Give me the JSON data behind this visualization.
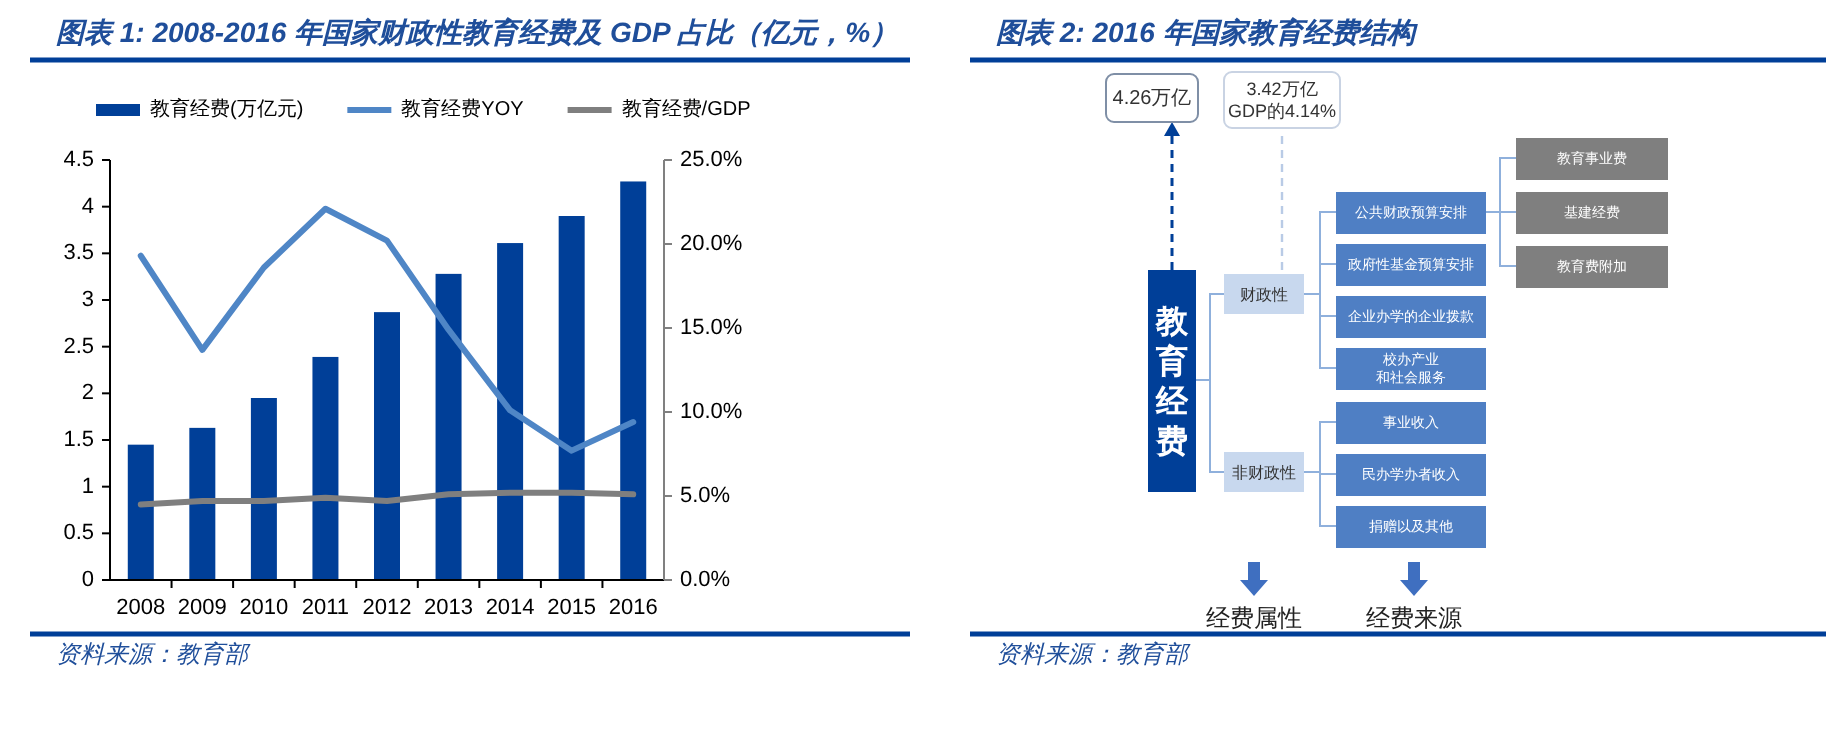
{
  "chart_data": [
    {
      "type": "bar",
      "title": "图表 1:  2008-2016 年国家财政性教育经费及 GDP 占比（亿元，%）",
      "categories": [
        "2008",
        "2009",
        "2010",
        "2011",
        "2012",
        "2013",
        "2014",
        "2015",
        "2016"
      ],
      "series": [
        {
          "name": "教育经费(万亿元)",
          "type": "bar",
          "color": "#003f98",
          "values": [
            1.45,
            1.63,
            1.95,
            2.39,
            2.87,
            3.28,
            3.61,
            3.9,
            4.27
          ]
        },
        {
          "name": "教育经费YOY",
          "type": "line",
          "axis": "y2",
          "color": "#4f86c6",
          "values": [
            19.3,
            13.7,
            18.6,
            22.1,
            20.2,
            14.9,
            10.1,
            7.7,
            9.4
          ]
        },
        {
          "name": "教育经费/GDP",
          "type": "line",
          "axis": "y2",
          "color": "#7f7f7f",
          "values": [
            4.5,
            4.7,
            4.7,
            4.9,
            4.7,
            5.1,
            5.2,
            5.2,
            5.1
          ]
        }
      ],
      "ylim": [
        0,
        4.5
      ],
      "yticks": [
        0,
        0.5,
        1,
        1.5,
        2,
        2.5,
        3,
        3.5,
        4,
        4.5
      ],
      "y2lim": [
        0,
        25
      ],
      "y2ticks": [
        {
          "value": 0,
          "label": "0.0%"
        },
        {
          "value": 5,
          "label": "5.0%"
        },
        {
          "value": 10,
          "label": "10.0%"
        },
        {
          "value": 15,
          "label": "15.0%"
        },
        {
          "value": 20,
          "label": "20.0%"
        },
        {
          "value": 25,
          "label": "25.0%"
        }
      ],
      "legend": "top",
      "annotations": [
        "资料来源：教育部"
      ]
    },
    {
      "type": "other",
      "title": "图表 2:  2016 年国家教育经费结构",
      "annotations": [
        "4.26万亿",
        "3.42万亿\nGDP的4.14%",
        "教育经费",
        "财政性",
        "非财政性",
        "公共财政预算安排",
        "政府性基金预算安排",
        "企业办学的企业拨款",
        "校办产业和社会服务",
        "事业收入",
        "民办学办者收入",
        "捐赠以及其他",
        "教育事业费",
        "基建经费",
        "教育费附加",
        "经费属性",
        "经费来源",
        "资料来源：教育部"
      ]
    }
  ]
}
